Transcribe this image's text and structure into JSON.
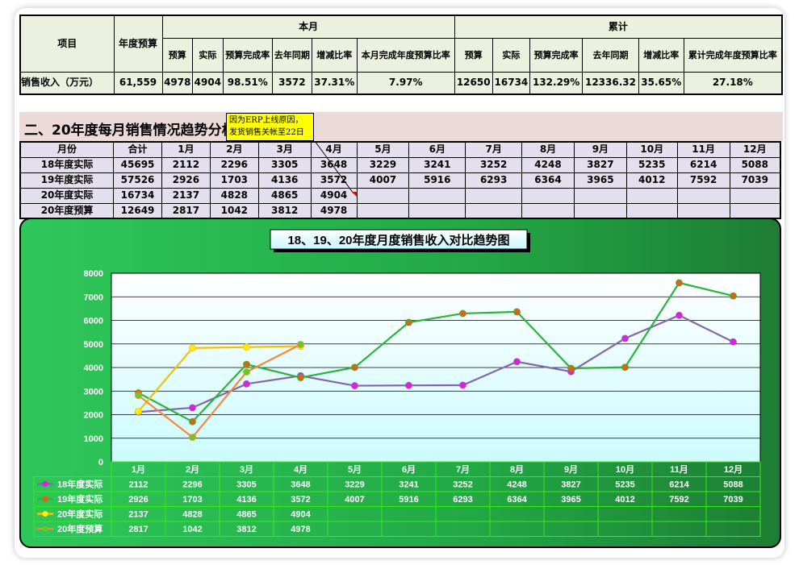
{
  "summary": {
    "headers": {
      "item": "项目",
      "annual_budget": "年度预算",
      "month": "本月",
      "cumulative": "累计"
    },
    "month_cols": [
      "预算",
      "实际",
      "预算完成率",
      "去年同期",
      "增减比率",
      "本月完成年度预算比率"
    ],
    "cum_cols": [
      "预算",
      "实际",
      "预算完成率",
      "去年同期",
      "增减比率",
      "累计完成年度预算比率"
    ],
    "row": {
      "label": "销售收入（万元）",
      "annual_budget": "61,559",
      "month": [
        "4978",
        "4904",
        "98.51%",
        "3572",
        "37.31%",
        "7.97%"
      ],
      "cum": [
        "12650",
        "16734",
        "132.29%",
        "12336.32",
        "35.65%",
        "27.18%"
      ]
    }
  },
  "section_title": "二、20年度每月销售情况趋势分析",
  "note": "因为ERP上线原因，发货销售关帐至22日",
  "monthly": {
    "headers": [
      "月份",
      "合计",
      "1月",
      "2月",
      "3月",
      "4月",
      "5月",
      "6月",
      "7月",
      "8月",
      "9月",
      "10月",
      "11月",
      "12月"
    ],
    "rows": [
      [
        "18年度实际",
        "45695",
        "2112",
        "2296",
        "3305",
        "3648",
        "3229",
        "3241",
        "3252",
        "4248",
        "3827",
        "5235",
        "6214",
        "5088"
      ],
      [
        "19年度实际",
        "57526",
        "2926",
        "1703",
        "4136",
        "3572",
        "4007",
        "5916",
        "6293",
        "6364",
        "3965",
        "4012",
        "7592",
        "7039"
      ],
      [
        "20年度实际",
        "16734",
        "2137",
        "4828",
        "4865",
        "4904",
        "",
        "",
        "",
        "",
        "",
        "",
        "",
        ""
      ],
      [
        "20年度预算",
        "12649",
        "2817",
        "1042",
        "3812",
        "4978",
        "",
        "",
        "",
        "",
        "",
        "",
        "",
        ""
      ]
    ]
  },
  "chart_data": {
    "type": "line",
    "title": "18、19、20年度月度销售收入对比趋势图",
    "categories": [
      "1月",
      "2月",
      "3月",
      "4月",
      "5月",
      "6月",
      "7月",
      "8月",
      "9月",
      "10月",
      "11月",
      "12月"
    ],
    "ylim": [
      0,
      8000
    ],
    "yticks": [
      0,
      1000,
      2000,
      3000,
      4000,
      5000,
      6000,
      7000,
      8000
    ],
    "grid": true,
    "legend": "data-table-bottom",
    "series": [
      {
        "name": "18年度实际",
        "line": "#8466b0",
        "marker": "#e21ee6",
        "values": [
          2112,
          2296,
          3305,
          3648,
          3229,
          3241,
          3252,
          4248,
          3827,
          5235,
          6214,
          5088
        ]
      },
      {
        "name": "19年度实际",
        "line": "#2bb43a",
        "marker": "#d9650f",
        "values": [
          2926,
          1703,
          4136,
          3572,
          4007,
          5916,
          6293,
          6364,
          3965,
          4012,
          7592,
          7039
        ]
      },
      {
        "name": "20年度实际",
        "line": "#f5c000",
        "marker": "#ffee00",
        "values": [
          2137,
          4828,
          4865,
          4904,
          null,
          null,
          null,
          null,
          null,
          null,
          null,
          null
        ]
      },
      {
        "name": "20年度预算",
        "line": "#f08a3c",
        "marker": "#66cc22",
        "values": [
          2817,
          1042,
          3812,
          4978,
          null,
          null,
          null,
          null,
          null,
          null,
          null,
          null
        ]
      }
    ]
  }
}
